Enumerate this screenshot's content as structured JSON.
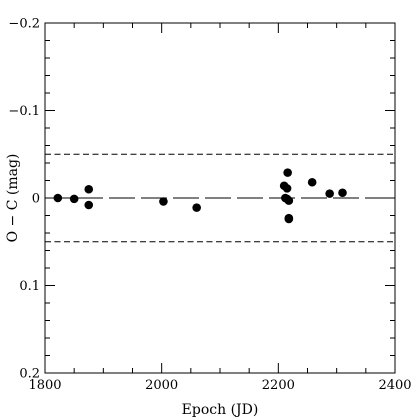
{
  "chart_data": {
    "type": "scatter",
    "title": "",
    "xlabel": "Epoch (JD)",
    "ylabel": "O − C (mag)",
    "xlim": [
      1800,
      2400
    ],
    "ylim": [
      0.2,
      -0.2
    ],
    "y_axis_inverted": true,
    "grid": false,
    "legend": "none",
    "x_ticks": [
      {
        "value": 1800,
        "label": "1800"
      },
      {
        "value": 2000,
        "label": "2000"
      },
      {
        "value": 2200,
        "label": "2200"
      },
      {
        "value": 2400,
        "label": "2400"
      }
    ],
    "y_ticks": [
      {
        "value": -0.2,
        "label": "−0.2"
      },
      {
        "value": -0.1,
        "label": "−0.1"
      },
      {
        "value": 0,
        "label": "0"
      },
      {
        "value": 0.1,
        "label": "0.1"
      },
      {
        "value": 0.2,
        "label": "0.2"
      }
    ],
    "x_minor_step": 50,
    "y_minor_step": 0.02,
    "reference_lines": [
      {
        "y": 0,
        "style": "long-dash"
      },
      {
        "y": -0.05,
        "style": "dashed"
      },
      {
        "y": 0.05,
        "style": "dashed"
      }
    ],
    "series": [
      {
        "x": [
          1822,
          1850,
          1875,
          1875,
          2003,
          2060,
          2210,
          2212,
          2215,
          2215,
          2216,
          2218,
          2218,
          2218,
          2258,
          2288,
          2310
        ],
        "y": [
          0.0,
          0.001,
          -0.01,
          0.008,
          0.004,
          0.011,
          -0.014,
          0.0,
          -0.011,
          0.001,
          -0.029,
          0.024,
          0.023,
          0.003,
          -0.018,
          -0.005,
          -0.006
        ]
      }
    ],
    "colors": {
      "points": "#000000",
      "axes": "#000000",
      "lines": "#000000"
    }
  }
}
